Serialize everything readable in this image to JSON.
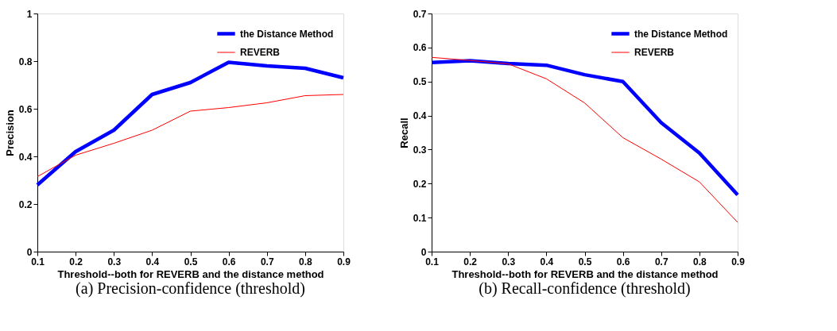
{
  "chart_data": [
    {
      "type": "line",
      "xlabel": "Threshold--both for REVERB and the distance method",
      "ylabel": "Precision",
      "annotations": [
        "(a)  Precision-confidence (threshold)"
      ],
      "x": [
        0.1,
        0.2,
        0.3,
        0.4,
        0.5,
        0.6,
        0.7,
        0.8,
        0.9
      ],
      "xlim": [
        0.1,
        0.9
      ],
      "xticks": [
        0.1,
        0.2,
        0.3,
        0.4,
        0.5,
        0.6,
        0.7,
        0.8,
        0.9
      ],
      "ylim": [
        0,
        1
      ],
      "yticks": [
        0,
        0.2,
        0.4,
        0.6,
        0.8,
        1
      ],
      "grid": false,
      "legend": "top right",
      "marker": "none",
      "line_style": "solid",
      "series": [
        {
          "name": "the Distance Method",
          "color": "#0000ff",
          "values": [
            0.28,
            0.42,
            0.51,
            0.66,
            0.71,
            0.795,
            0.78,
            0.77,
            0.73
          ]
        },
        {
          "name": "REVERB",
          "color": "#ff0000",
          "values": [
            0.315,
            0.405,
            0.455,
            0.51,
            0.59,
            0.605,
            0.625,
            0.655,
            0.66
          ]
        }
      ]
    },
    {
      "type": "line",
      "xlabel": "Threshold--both for REVERB and the distance method",
      "ylabel": "Recall",
      "annotations": [
        "(b)   Recall-confidence (threshold)"
      ],
      "x": [
        0.1,
        0.2,
        0.3,
        0.4,
        0.5,
        0.6,
        0.7,
        0.8,
        0.9
      ],
      "xlim": [
        0.1,
        0.9
      ],
      "xticks": [
        0.1,
        0.2,
        0.3,
        0.4,
        0.5,
        0.6,
        0.7,
        0.8,
        0.9
      ],
      "ylim": [
        0,
        0.7
      ],
      "yticks": [
        0,
        0.1,
        0.2,
        0.3,
        0.4,
        0.5,
        0.6,
        0.7
      ],
      "grid": false,
      "legend": "top right",
      "marker": "none",
      "line_style": "solid",
      "series": [
        {
          "name": "the Distance Method",
          "color": "#0000ff",
          "values": [
            0.556,
            0.561,
            0.553,
            0.548,
            0.52,
            0.5,
            0.379,
            0.29,
            0.167
          ]
        },
        {
          "name": "REVERB",
          "color": "#ff0000",
          "values": [
            0.571,
            0.562,
            0.552,
            0.508,
            0.437,
            0.335,
            0.272,
            0.205,
            0.086
          ]
        }
      ]
    }
  ]
}
